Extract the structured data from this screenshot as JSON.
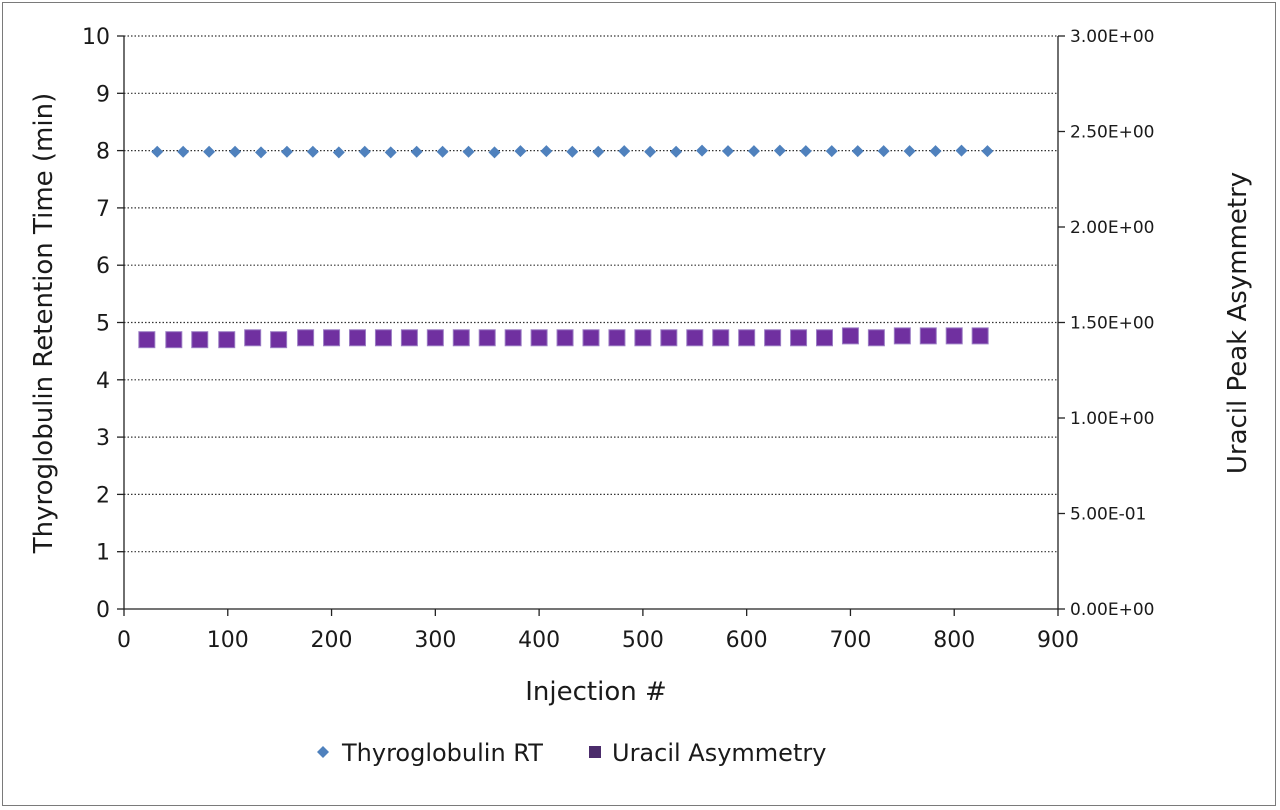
{
  "chart_data": {
    "type": "scatter",
    "xlabel": "Injection #",
    "ylabel": "Thyroglobulin Retention Time (min)",
    "y2label": "Uracil Peak Asymmetry",
    "xlim": [
      0,
      900
    ],
    "ylim": [
      0,
      10
    ],
    "y2lim": [
      0,
      3
    ],
    "x_ticks": [
      "0",
      "100",
      "200",
      "300",
      "400",
      "500",
      "600",
      "700",
      "800",
      "900"
    ],
    "y_ticks": [
      "0",
      "1",
      "2",
      "3",
      "4",
      "5",
      "6",
      "7",
      "8",
      "9",
      "10"
    ],
    "y2_ticks": [
      "0.00E+00",
      "5.00E-01",
      "1.00E+00",
      "1.50E+00",
      "2.00E+00",
      "2.50E+00",
      "3.00E+00"
    ],
    "grid": "horizontal dotted",
    "legend_position": "bottom",
    "series": [
      {
        "name": "Thyroglobulin RT",
        "axis": "left",
        "marker": "diamond",
        "color": "#4F81BD",
        "x": [
          32,
          57,
          82,
          107,
          132,
          157,
          182,
          207,
          232,
          257,
          282,
          307,
          332,
          357,
          382,
          407,
          432,
          457,
          482,
          507,
          532,
          557,
          582,
          607,
          632,
          657,
          682,
          707,
          732,
          757,
          782,
          807,
          832
        ],
        "y": [
          7.98,
          7.98,
          7.98,
          7.98,
          7.97,
          7.98,
          7.98,
          7.97,
          7.98,
          7.97,
          7.98,
          7.98,
          7.98,
          7.97,
          7.99,
          7.99,
          7.98,
          7.98,
          7.99,
          7.98,
          7.98,
          8.0,
          7.99,
          7.99,
          8.0,
          7.99,
          7.99,
          7.99,
          7.99,
          7.99,
          7.99,
          8.0,
          7.99
        ]
      },
      {
        "name": "Uracil Asymmetry",
        "axis": "right",
        "marker": "square",
        "color": "#7030A0",
        "x": [
          22,
          48,
          73,
          99,
          124,
          149,
          175,
          200,
          225,
          250,
          275,
          300,
          325,
          350,
          375,
          400,
          425,
          450,
          475,
          500,
          525,
          550,
          575,
          600,
          625,
          650,
          675,
          700,
          725,
          750,
          775,
          800,
          825
        ],
        "y": [
          1.41,
          1.41,
          1.41,
          1.41,
          1.42,
          1.41,
          1.42,
          1.42,
          1.42,
          1.42,
          1.42,
          1.42,
          1.42,
          1.42,
          1.42,
          1.42,
          1.42,
          1.42,
          1.42,
          1.42,
          1.42,
          1.42,
          1.42,
          1.42,
          1.42,
          1.42,
          1.42,
          1.43,
          1.42,
          1.43,
          1.43,
          1.43,
          1.43
        ]
      }
    ]
  }
}
